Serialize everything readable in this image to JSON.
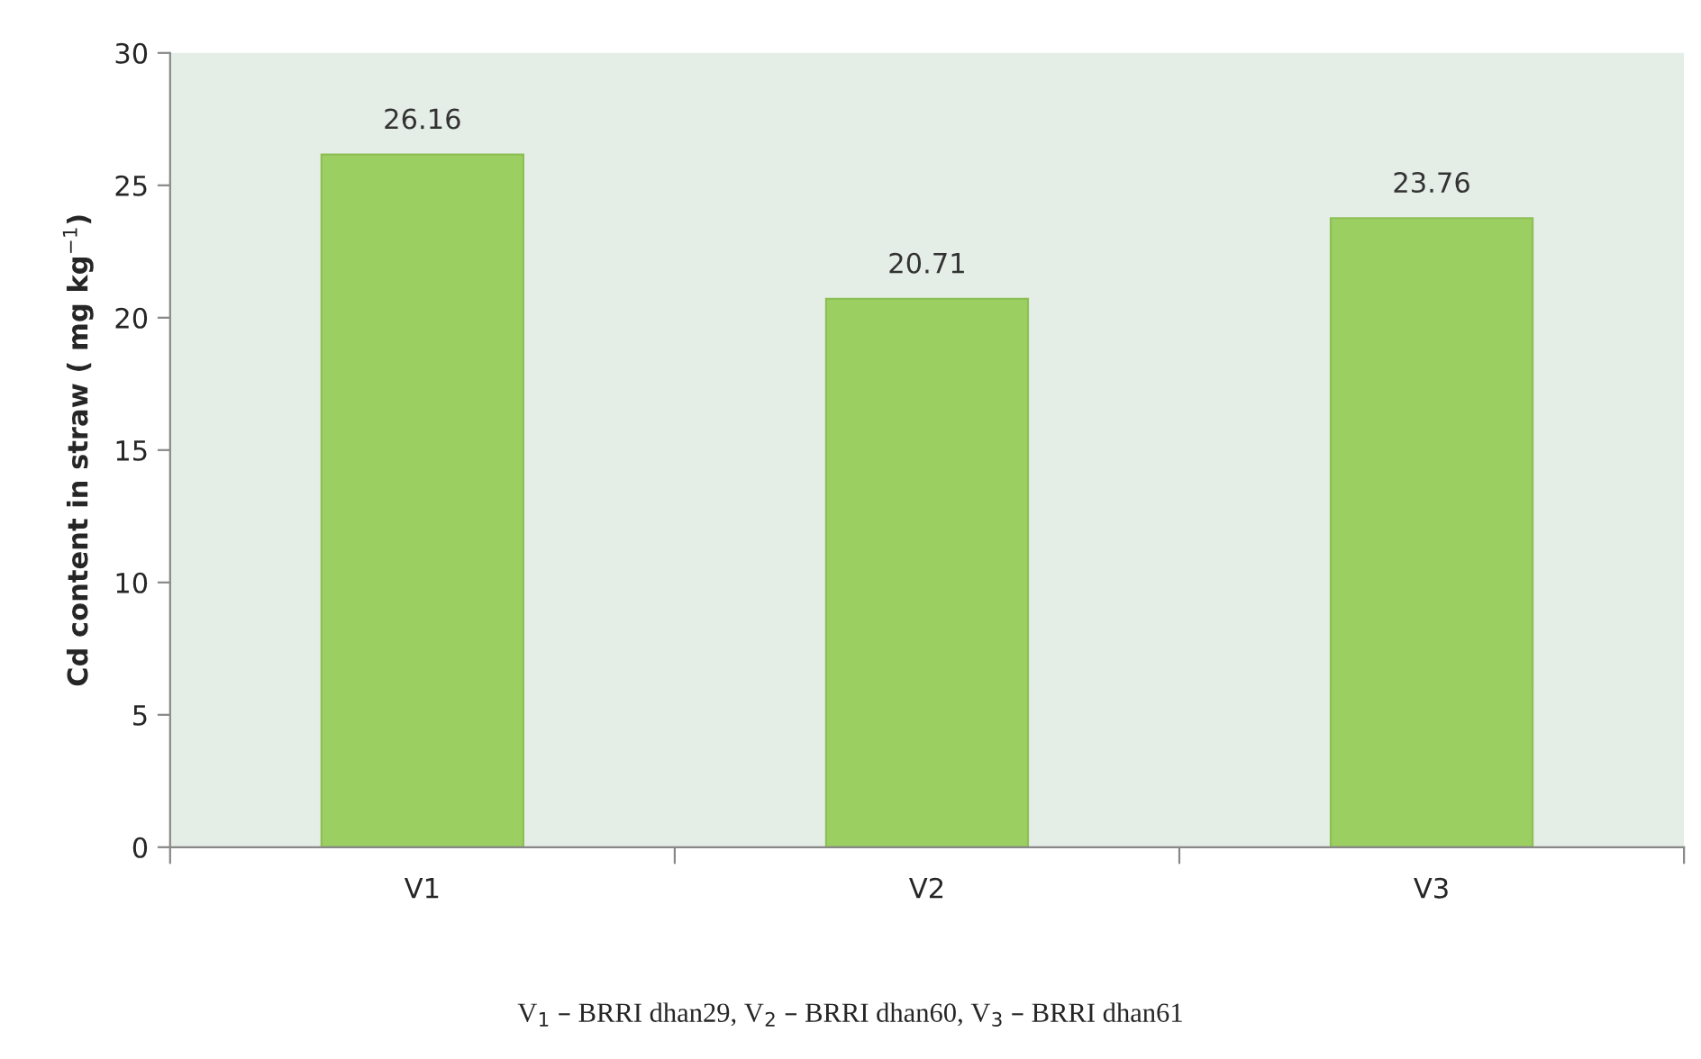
{
  "chart_data": {
    "type": "bar",
    "ylabel": "Cd content in straw ( mg kg$^{−1}$)",
    "categories": [
      "V1",
      "V2",
      "V3"
    ],
    "values": [
      26.16,
      20.71,
      23.76
    ],
    "color": "#9ccf62",
    "ylim": [
      0,
      30
    ],
    "yticks": [
      0,
      5,
      10,
      15,
      20,
      25,
      30
    ],
    "grid": false,
    "data_labels": true,
    "annotations": [
      "V$_{1}$ – BRRI dhan29, V$_{2}$ – BRRI dhan60, V$_{3}$ – BRRI dhan61"
    ]
  }
}
